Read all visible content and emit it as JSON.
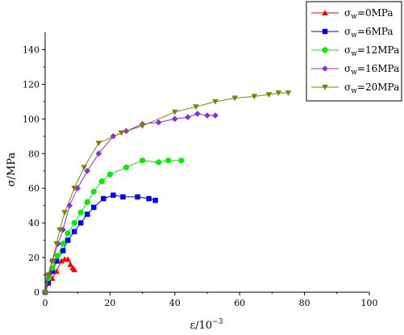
{
  "chart_data": {
    "type": "line",
    "xlabel": "ε/10",
    "xlabel_exponent": "−3",
    "ylabel": "σ/MPa",
    "xlim": [
      0,
      100
    ],
    "ylim": [
      0,
      150
    ],
    "xticks": [
      0,
      20,
      40,
      60,
      80,
      100
    ],
    "yticks": [
      0,
      20,
      40,
      60,
      80,
      100,
      120,
      140
    ],
    "grid": false,
    "legend_position": "top-right",
    "series": [
      {
        "name": "σw=0MPa",
        "name_symbol": "σ",
        "name_sub": "w",
        "name_value": "=0MPa",
        "color": "#ff0000",
        "marker": "triangle-up",
        "x": [
          0,
          1.0,
          2.2,
          3.5,
          5.0,
          6.0,
          7.0,
          7.8,
          8.5,
          9.0
        ],
        "y": [
          0,
          5,
          8,
          12,
          18,
          19,
          19,
          16,
          14,
          13
        ]
      },
      {
        "name": "σw=6MPa",
        "name_symbol": "σ",
        "name_sub": "w",
        "name_value": "=6MPa",
        "color": "#0000ff",
        "marker": "square",
        "x": [
          0,
          1.0,
          2.2,
          3.5,
          5.5,
          7.0,
          9.0,
          11.0,
          13.0,
          15.0,
          18.0,
          21.0,
          24.0,
          28.5,
          32.0,
          34.0
        ],
        "y": [
          0,
          6,
          12,
          18,
          24,
          30,
          35,
          40,
          45,
          49,
          54,
          56,
          55,
          55,
          54,
          53
        ]
      },
      {
        "name": "σw=12MPa",
        "name_symbol": "σ",
        "name_sub": "w",
        "name_value": "=12MPa",
        "color": "#00ee00",
        "marker": "circle",
        "x": [
          0,
          1.0,
          2.2,
          3.8,
          5.5,
          7.0,
          9.0,
          11.0,
          13.0,
          15.0,
          17.5,
          20.0,
          25.0,
          30.0,
          35.0,
          38.0,
          42.0
        ],
        "y": [
          0,
          8,
          14,
          21,
          28,
          34,
          40,
          46,
          52,
          58,
          64,
          68,
          72,
          76,
          75,
          76,
          76
        ]
      },
      {
        "name": "σw=16MPa",
        "name_symbol": "σ",
        "name_sub": "w",
        "name_value": "=16MPa",
        "color": "#8a2be2",
        "marker": "diamond",
        "x": [
          0,
          1.0,
          2.2,
          4.0,
          5.5,
          7.5,
          10.0,
          13.0,
          16.5,
          21.0,
          25.0,
          30.0,
          35.0,
          40.0,
          44.0,
          47.0,
          50.0,
          52.5
        ],
        "y": [
          0,
          10,
          18,
          28,
          36,
          50,
          60,
          70,
          80,
          90,
          93,
          97,
          98,
          100,
          101,
          103,
          102,
          102
        ]
      },
      {
        "name": "σw=20MPa",
        "name_symbol": "σ",
        "name_sub": "w",
        "name_value": "=20MPa",
        "color": "#808000",
        "marker": "triangle-down",
        "x": [
          0,
          1.0,
          2.2,
          3.5,
          4.5,
          6.0,
          9.0,
          12.0,
          16.5,
          23.5,
          30.0,
          40.0,
          46.5,
          52.5,
          58.5,
          64.5,
          69.0,
          72.0,
          75.0
        ],
        "y": [
          0,
          10,
          18,
          28,
          36,
          46,
          60,
          72,
          86,
          92,
          96,
          104,
          107,
          110,
          112,
          113,
          114,
          115,
          115
        ]
      }
    ]
  }
}
